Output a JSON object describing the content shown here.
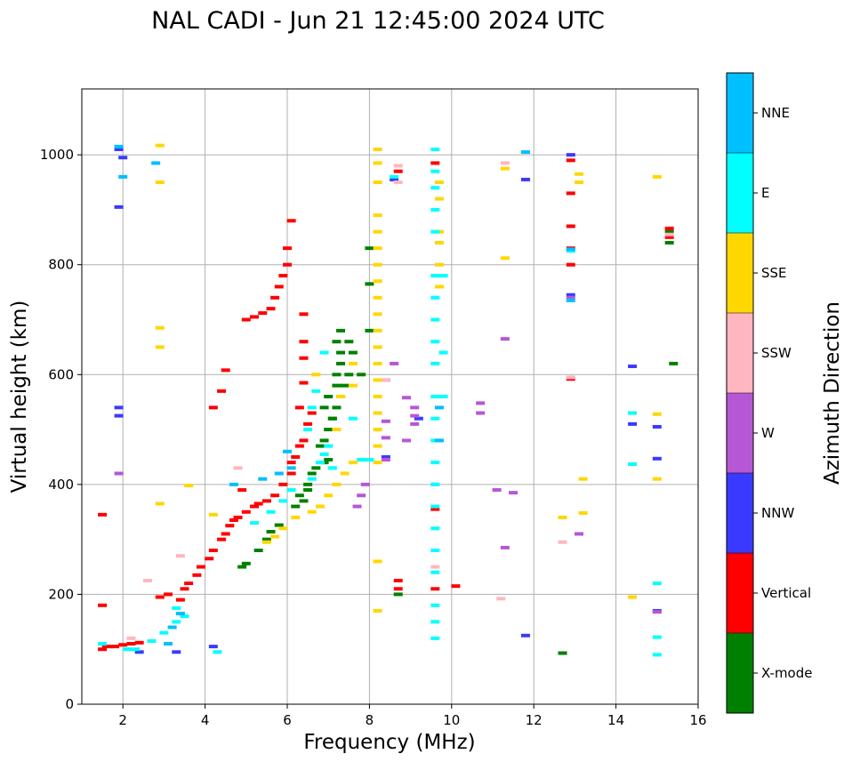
{
  "chart_data": {
    "type": "scatter",
    "title": "NAL CADI - Jun 21 12:45:00 2024 UTC",
    "xlabel": "Frequency (MHz)",
    "ylabel": "Virtual height (km)",
    "xlim": [
      1,
      16
    ],
    "ylim": [
      0,
      1120
    ],
    "xticks": [
      2,
      4,
      6,
      8,
      10,
      12,
      14,
      16
    ],
    "yticks": [
      0,
      200,
      400,
      600,
      800,
      1000
    ],
    "grid": true,
    "colorbar": {
      "label": "Azimuth Direction",
      "categories": [
        "X-mode",
        "Vertical",
        "NNW",
        "W",
        "SSW",
        "SSE",
        "E",
        "NNE"
      ],
      "colors": [
        "#008000",
        "#ff0000",
        "#3a3aff",
        "#b657d6",
        "#ffb6c1",
        "#ffd700",
        "#00ffff",
        "#00bfff"
      ]
    },
    "series": [
      {
        "name": "X-mode",
        "points": [
          [
            4.9,
            250
          ],
          [
            5.0,
            256
          ],
          [
            5.3,
            280
          ],
          [
            5.5,
            300
          ],
          [
            5.6,
            314
          ],
          [
            5.8,
            326
          ],
          [
            6.2,
            360
          ],
          [
            6.3,
            380
          ],
          [
            6.5,
            400
          ],
          [
            6.6,
            420
          ],
          [
            6.7,
            430
          ],
          [
            6.9,
            440
          ],
          [
            6.9,
            480
          ],
          [
            7.0,
            500
          ],
          [
            7.1,
            520
          ],
          [
            7.2,
            540
          ],
          [
            7.3,
            560
          ],
          [
            7.2,
            580
          ],
          [
            7.2,
            600
          ],
          [
            7.3,
            620
          ],
          [
            7.3,
            640
          ],
          [
            7.2,
            660
          ],
          [
            7.3,
            680
          ],
          [
            7.5,
            660
          ],
          [
            7.6,
            640
          ],
          [
            7.5,
            600
          ],
          [
            7.4,
            580
          ],
          [
            7.0,
            560
          ],
          [
            6.9,
            540
          ],
          [
            7.8,
            600
          ],
          [
            8.0,
            680
          ],
          [
            8.0,
            765
          ],
          [
            8.0,
            830
          ],
          [
            8.7,
            200
          ],
          [
            12.7,
            93
          ],
          [
            15.4,
            620
          ],
          [
            15.3,
            840
          ],
          [
            15.3,
            860
          ],
          [
            7.1,
            520
          ],
          [
            6.8,
            470
          ],
          [
            7.0,
            445
          ],
          [
            6.5,
            390
          ],
          [
            6.4,
            370
          ]
        ]
      },
      {
        "name": "Vertical",
        "points": [
          [
            1.5,
            100
          ],
          [
            1.6,
            105
          ],
          [
            1.8,
            105
          ],
          [
            2.0,
            108
          ],
          [
            2.2,
            110
          ],
          [
            2.4,
            112
          ],
          [
            1.5,
            180
          ],
          [
            1.5,
            345
          ],
          [
            2.9,
            195
          ],
          [
            3.1,
            200
          ],
          [
            3.4,
            190
          ],
          [
            3.5,
            210
          ],
          [
            3.6,
            220
          ],
          [
            3.8,
            235
          ],
          [
            3.9,
            250
          ],
          [
            4.1,
            265
          ],
          [
            4.2,
            280
          ],
          [
            4.4,
            300
          ],
          [
            4.5,
            310
          ],
          [
            4.6,
            325
          ],
          [
            4.7,
            335
          ],
          [
            4.8,
            340
          ],
          [
            5.0,
            350
          ],
          [
            5.2,
            360
          ],
          [
            5.5,
            370
          ],
          [
            5.7,
            380
          ],
          [
            5.9,
            400
          ],
          [
            6.1,
            420
          ],
          [
            6.1,
            440
          ],
          [
            6.2,
            450
          ],
          [
            6.3,
            470
          ],
          [
            6.4,
            480
          ],
          [
            6.5,
            510
          ],
          [
            6.6,
            530
          ],
          [
            6.3,
            540
          ],
          [
            5.3,
            365
          ],
          [
            5.0,
            700
          ],
          [
            5.2,
            705
          ],
          [
            5.4,
            712
          ],
          [
            5.6,
            720
          ],
          [
            5.7,
            740
          ],
          [
            5.8,
            760
          ],
          [
            5.9,
            780
          ],
          [
            6.0,
            800
          ],
          [
            6.0,
            830
          ],
          [
            6.1,
            880
          ],
          [
            6.4,
            630
          ],
          [
            6.4,
            660
          ],
          [
            6.4,
            710
          ],
          [
            6.4,
            585
          ],
          [
            4.4,
            570
          ],
          [
            4.5,
            608
          ],
          [
            4.2,
            540
          ],
          [
            8.7,
            210
          ],
          [
            8.7,
            225
          ],
          [
            8.7,
            970
          ],
          [
            9.6,
            985
          ],
          [
            9.6,
            355
          ],
          [
            9.6,
            210
          ],
          [
            10.1,
            215
          ],
          [
            12.9,
            592
          ],
          [
            12.9,
            800
          ],
          [
            12.9,
            830
          ],
          [
            12.9,
            870
          ],
          [
            12.9,
            930
          ],
          [
            12.9,
            990
          ],
          [
            15.3,
            850
          ],
          [
            15.3,
            866
          ],
          [
            4.9,
            390
          ]
        ]
      },
      {
        "name": "NNW",
        "points": [
          [
            1.9,
            525
          ],
          [
            1.9,
            540
          ],
          [
            1.9,
            905
          ],
          [
            2.0,
            995
          ],
          [
            1.9,
            1010
          ],
          [
            2.4,
            95
          ],
          [
            3.3,
            95
          ],
          [
            4.2,
            105
          ],
          [
            8.4,
            590
          ],
          [
            8.6,
            955
          ],
          [
            9.2,
            520
          ],
          [
            11.8,
            955
          ],
          [
            11.8,
            125
          ],
          [
            12.9,
            745
          ],
          [
            12.9,
            1000
          ],
          [
            14.4,
            615
          ],
          [
            14.4,
            510
          ],
          [
            15.0,
            505
          ],
          [
            15.0,
            447
          ],
          [
            15.0,
            170
          ],
          [
            8.4,
            450
          ]
        ]
      },
      {
        "name": "W",
        "points": [
          [
            1.9,
            420
          ],
          [
            8.4,
            515
          ],
          [
            8.4,
            485
          ],
          [
            8.4,
            445
          ],
          [
            8.6,
            620
          ],
          [
            8.9,
            558
          ],
          [
            9.1,
            540
          ],
          [
            9.1,
            525
          ],
          [
            9.1,
            510
          ],
          [
            10.7,
            548
          ],
          [
            10.7,
            530
          ],
          [
            11.1,
            390
          ],
          [
            11.3,
            665
          ],
          [
            11.3,
            285
          ],
          [
            11.5,
            385
          ],
          [
            13.1,
            310
          ],
          [
            12.9,
            740
          ],
          [
            7.8,
            380
          ],
          [
            7.7,
            360
          ],
          [
            7.9,
            400
          ],
          [
            15.0,
            168
          ],
          [
            8.9,
            480
          ]
        ]
      },
      {
        "name": "SSW",
        "points": [
          [
            2.2,
            120
          ],
          [
            2.6,
            225
          ],
          [
            3.4,
            270
          ],
          [
            4.8,
            430
          ],
          [
            8.7,
            980
          ],
          [
            8.7,
            950
          ],
          [
            8.4,
            590
          ],
          [
            9.6,
            250
          ],
          [
            11.2,
            192
          ],
          [
            11.3,
            985
          ],
          [
            12.7,
            295
          ],
          [
            12.9,
            595
          ],
          [
            15.3,
            855
          ]
        ]
      },
      {
        "name": "SSE",
        "points": [
          [
            2.9,
            1017
          ],
          [
            2.9,
            950
          ],
          [
            2.9,
            685
          ],
          [
            2.9,
            650
          ],
          [
            2.9,
            365
          ],
          [
            3.6,
            398
          ],
          [
            4.2,
            345
          ],
          [
            5.5,
            295
          ],
          [
            5.7,
            305
          ],
          [
            5.9,
            320
          ],
          [
            6.2,
            340
          ],
          [
            6.6,
            350
          ],
          [
            6.8,
            360
          ],
          [
            7.0,
            380
          ],
          [
            7.2,
            400
          ],
          [
            7.4,
            420
          ],
          [
            7.6,
            440
          ],
          [
            7.2,
            500
          ],
          [
            7.3,
            560
          ],
          [
            7.6,
            580
          ],
          [
            7.6,
            620
          ],
          [
            6.7,
            600
          ],
          [
            8.2,
            1010
          ],
          [
            8.2,
            985
          ],
          [
            8.2,
            950
          ],
          [
            8.2,
            890
          ],
          [
            8.2,
            860
          ],
          [
            8.2,
            830
          ],
          [
            8.2,
            800
          ],
          [
            8.2,
            770
          ],
          [
            8.2,
            740
          ],
          [
            8.2,
            710
          ],
          [
            8.2,
            680
          ],
          [
            8.2,
            650
          ],
          [
            8.2,
            620
          ],
          [
            8.2,
            590
          ],
          [
            8.2,
            560
          ],
          [
            8.2,
            530
          ],
          [
            8.2,
            500
          ],
          [
            8.2,
            470
          ],
          [
            8.2,
            440
          ],
          [
            8.2,
            260
          ],
          [
            8.2,
            170
          ],
          [
            9.7,
            950
          ],
          [
            9.7,
            920
          ],
          [
            9.7,
            860
          ],
          [
            9.7,
            840
          ],
          [
            9.7,
            800
          ],
          [
            9.7,
            760
          ],
          [
            11.3,
            975
          ],
          [
            11.3,
            812
          ],
          [
            13.1,
            965
          ],
          [
            13.1,
            950
          ],
          [
            13.2,
            410
          ],
          [
            13.2,
            348
          ],
          [
            12.7,
            340
          ],
          [
            14.4,
            195
          ],
          [
            15.0,
            960
          ],
          [
            15.0,
            528
          ],
          [
            15.0,
            410
          ]
        ]
      },
      {
        "name": "E",
        "points": [
          [
            1.5,
            110
          ],
          [
            2.1,
            100
          ],
          [
            2.3,
            100
          ],
          [
            2.7,
            115
          ],
          [
            3.0,
            130
          ],
          [
            3.3,
            150
          ],
          [
            3.3,
            175
          ],
          [
            3.5,
            160
          ],
          [
            4.3,
            95
          ],
          [
            5.2,
            330
          ],
          [
            5.6,
            350
          ],
          [
            5.9,
            370
          ],
          [
            6.1,
            390
          ],
          [
            6.6,
            410
          ],
          [
            6.8,
            440
          ],
          [
            6.9,
            455
          ],
          [
            7.0,
            470
          ],
          [
            6.5,
            500
          ],
          [
            6.6,
            540
          ],
          [
            6.7,
            570
          ],
          [
            6.9,
            640
          ],
          [
            7.6,
            520
          ],
          [
            7.8,
            445
          ],
          [
            8.0,
            445
          ],
          [
            9.6,
            1010
          ],
          [
            9.6,
            970
          ],
          [
            9.6,
            940
          ],
          [
            9.6,
            900
          ],
          [
            9.6,
            860
          ],
          [
            9.6,
            780
          ],
          [
            9.6,
            740
          ],
          [
            9.6,
            700
          ],
          [
            9.6,
            660
          ],
          [
            9.6,
            620
          ],
          [
            9.6,
            560
          ],
          [
            9.6,
            520
          ],
          [
            9.6,
            480
          ],
          [
            9.6,
            440
          ],
          [
            9.6,
            400
          ],
          [
            9.6,
            360
          ],
          [
            9.6,
            320
          ],
          [
            9.6,
            280
          ],
          [
            9.6,
            240
          ],
          [
            9.6,
            180
          ],
          [
            9.6,
            150
          ],
          [
            9.6,
            120
          ],
          [
            9.8,
            780
          ],
          [
            9.8,
            640
          ],
          [
            9.8,
            560
          ],
          [
            8.6,
            960
          ],
          [
            12.9,
            825
          ],
          [
            14.4,
            530
          ],
          [
            14.4,
            437
          ],
          [
            15.0,
            220
          ],
          [
            15.0,
            122
          ],
          [
            15.0,
            90
          ],
          [
            7.1,
            430
          ]
        ]
      },
      {
        "name": "NNE",
        "points": [
          [
            1.9,
            1015
          ],
          [
            2.0,
            960
          ],
          [
            2.8,
            985
          ],
          [
            3.2,
            140
          ],
          [
            3.4,
            165
          ],
          [
            3.1,
            110
          ],
          [
            4.7,
            400
          ],
          [
            5.4,
            410
          ],
          [
            5.8,
            420
          ],
          [
            6.1,
            430
          ],
          [
            6.0,
            460
          ],
          [
            9.7,
            540
          ],
          [
            9.7,
            480
          ],
          [
            11.8,
            1005
          ],
          [
            12.9,
            735
          ],
          [
            12.9,
            828
          ]
        ]
      }
    ]
  }
}
